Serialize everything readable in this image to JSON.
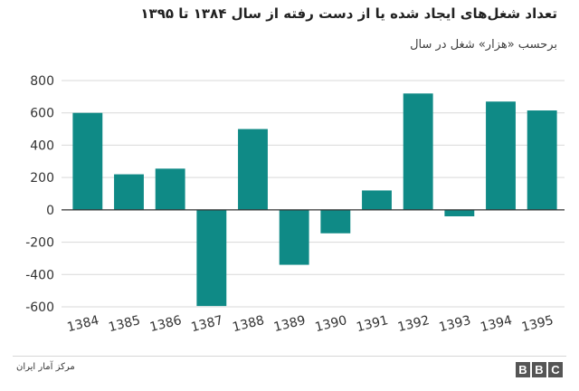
{
  "header": {
    "title": "تعداد شغل‌های ایجاد شده یا از دست رفته از سال ۱۳۸۴ تا ۱۳۹۵",
    "subtitle": "برحسب «هزار» شغل در سال"
  },
  "footer": {
    "source": "مرکز آمار ایران",
    "logo_letters": [
      "B",
      "B",
      "C"
    ]
  },
  "colors": {
    "bar": "#0f8a86",
    "grid": "#d9d9d9",
    "zero_line": "#333333",
    "tick_text": "#333333"
  },
  "chart_data": {
    "type": "bar",
    "title": "تعداد شغل‌های ایجاد شده یا از دست رفته از سال ۱۳۸۴ تا ۱۳۹۵",
    "subtitle": "برحسب «هزار» شغل در سال",
    "categories": [
      "1384",
      "1385",
      "1386",
      "1387",
      "1388",
      "1389",
      "1390",
      "1391",
      "1392",
      "1393",
      "1394",
      "1395"
    ],
    "values": [
      600,
      220,
      255,
      -595,
      500,
      -340,
      -145,
      120,
      720,
      -40,
      670,
      615
    ],
    "yticks": [
      800,
      600,
      400,
      200,
      0,
      -200,
      -400,
      -600
    ],
    "ylim": [
      -600,
      800
    ],
    "xlabel": "",
    "ylabel": "",
    "grid": true,
    "legend": "none"
  }
}
